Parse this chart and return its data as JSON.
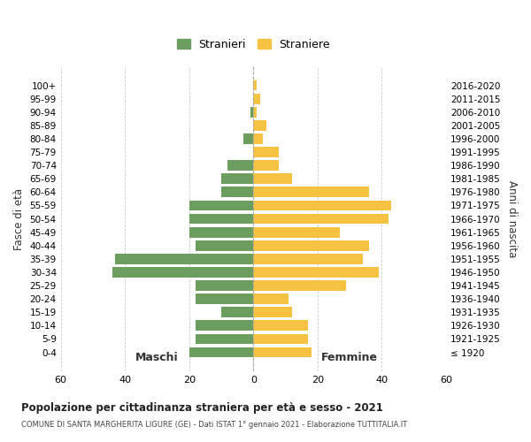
{
  "age_groups": [
    "100+",
    "95-99",
    "90-94",
    "85-89",
    "80-84",
    "75-79",
    "70-74",
    "65-69",
    "60-64",
    "55-59",
    "50-54",
    "45-49",
    "40-44",
    "35-39",
    "30-34",
    "25-29",
    "20-24",
    "15-19",
    "10-14",
    "5-9",
    "0-4"
  ],
  "birth_years": [
    "≤ 1920",
    "1921-1925",
    "1926-1930",
    "1931-1935",
    "1936-1940",
    "1941-1945",
    "1946-1950",
    "1951-1955",
    "1956-1960",
    "1961-1965",
    "1966-1970",
    "1971-1975",
    "1976-1980",
    "1981-1985",
    "1986-1990",
    "1991-1995",
    "1996-2000",
    "2001-2005",
    "2006-2010",
    "2011-2015",
    "2016-2020"
  ],
  "maschi": [
    0,
    0,
    1,
    0,
    3,
    0,
    8,
    10,
    10,
    20,
    20,
    20,
    18,
    43,
    44,
    18,
    18,
    10,
    18,
    18,
    20
  ],
  "femmine": [
    1,
    2,
    1,
    4,
    3,
    8,
    8,
    12,
    36,
    43,
    42,
    27,
    36,
    34,
    39,
    29,
    11,
    12,
    17,
    17,
    18
  ],
  "maschi_color": "#6b9e5e",
  "femmine_color": "#f5c242",
  "background_color": "#ffffff",
  "grid_color": "#cccccc",
  "title": "Popolazione per cittadinanza straniera per età e sesso - 2021",
  "subtitle": "COMUNE DI SANTA MARGHERITA LIGURE (GE) - Dati ISTAT 1° gennaio 2021 - Elaborazione TUTTITALIA.IT",
  "left_label": "Maschi",
  "right_label": "Femmine",
  "ylabel": "Fasce di età",
  "ylabel_right": "Anni di nascita",
  "xlim": 60,
  "legend_maschi": "Stranieri",
  "legend_femmine": "Straniere"
}
